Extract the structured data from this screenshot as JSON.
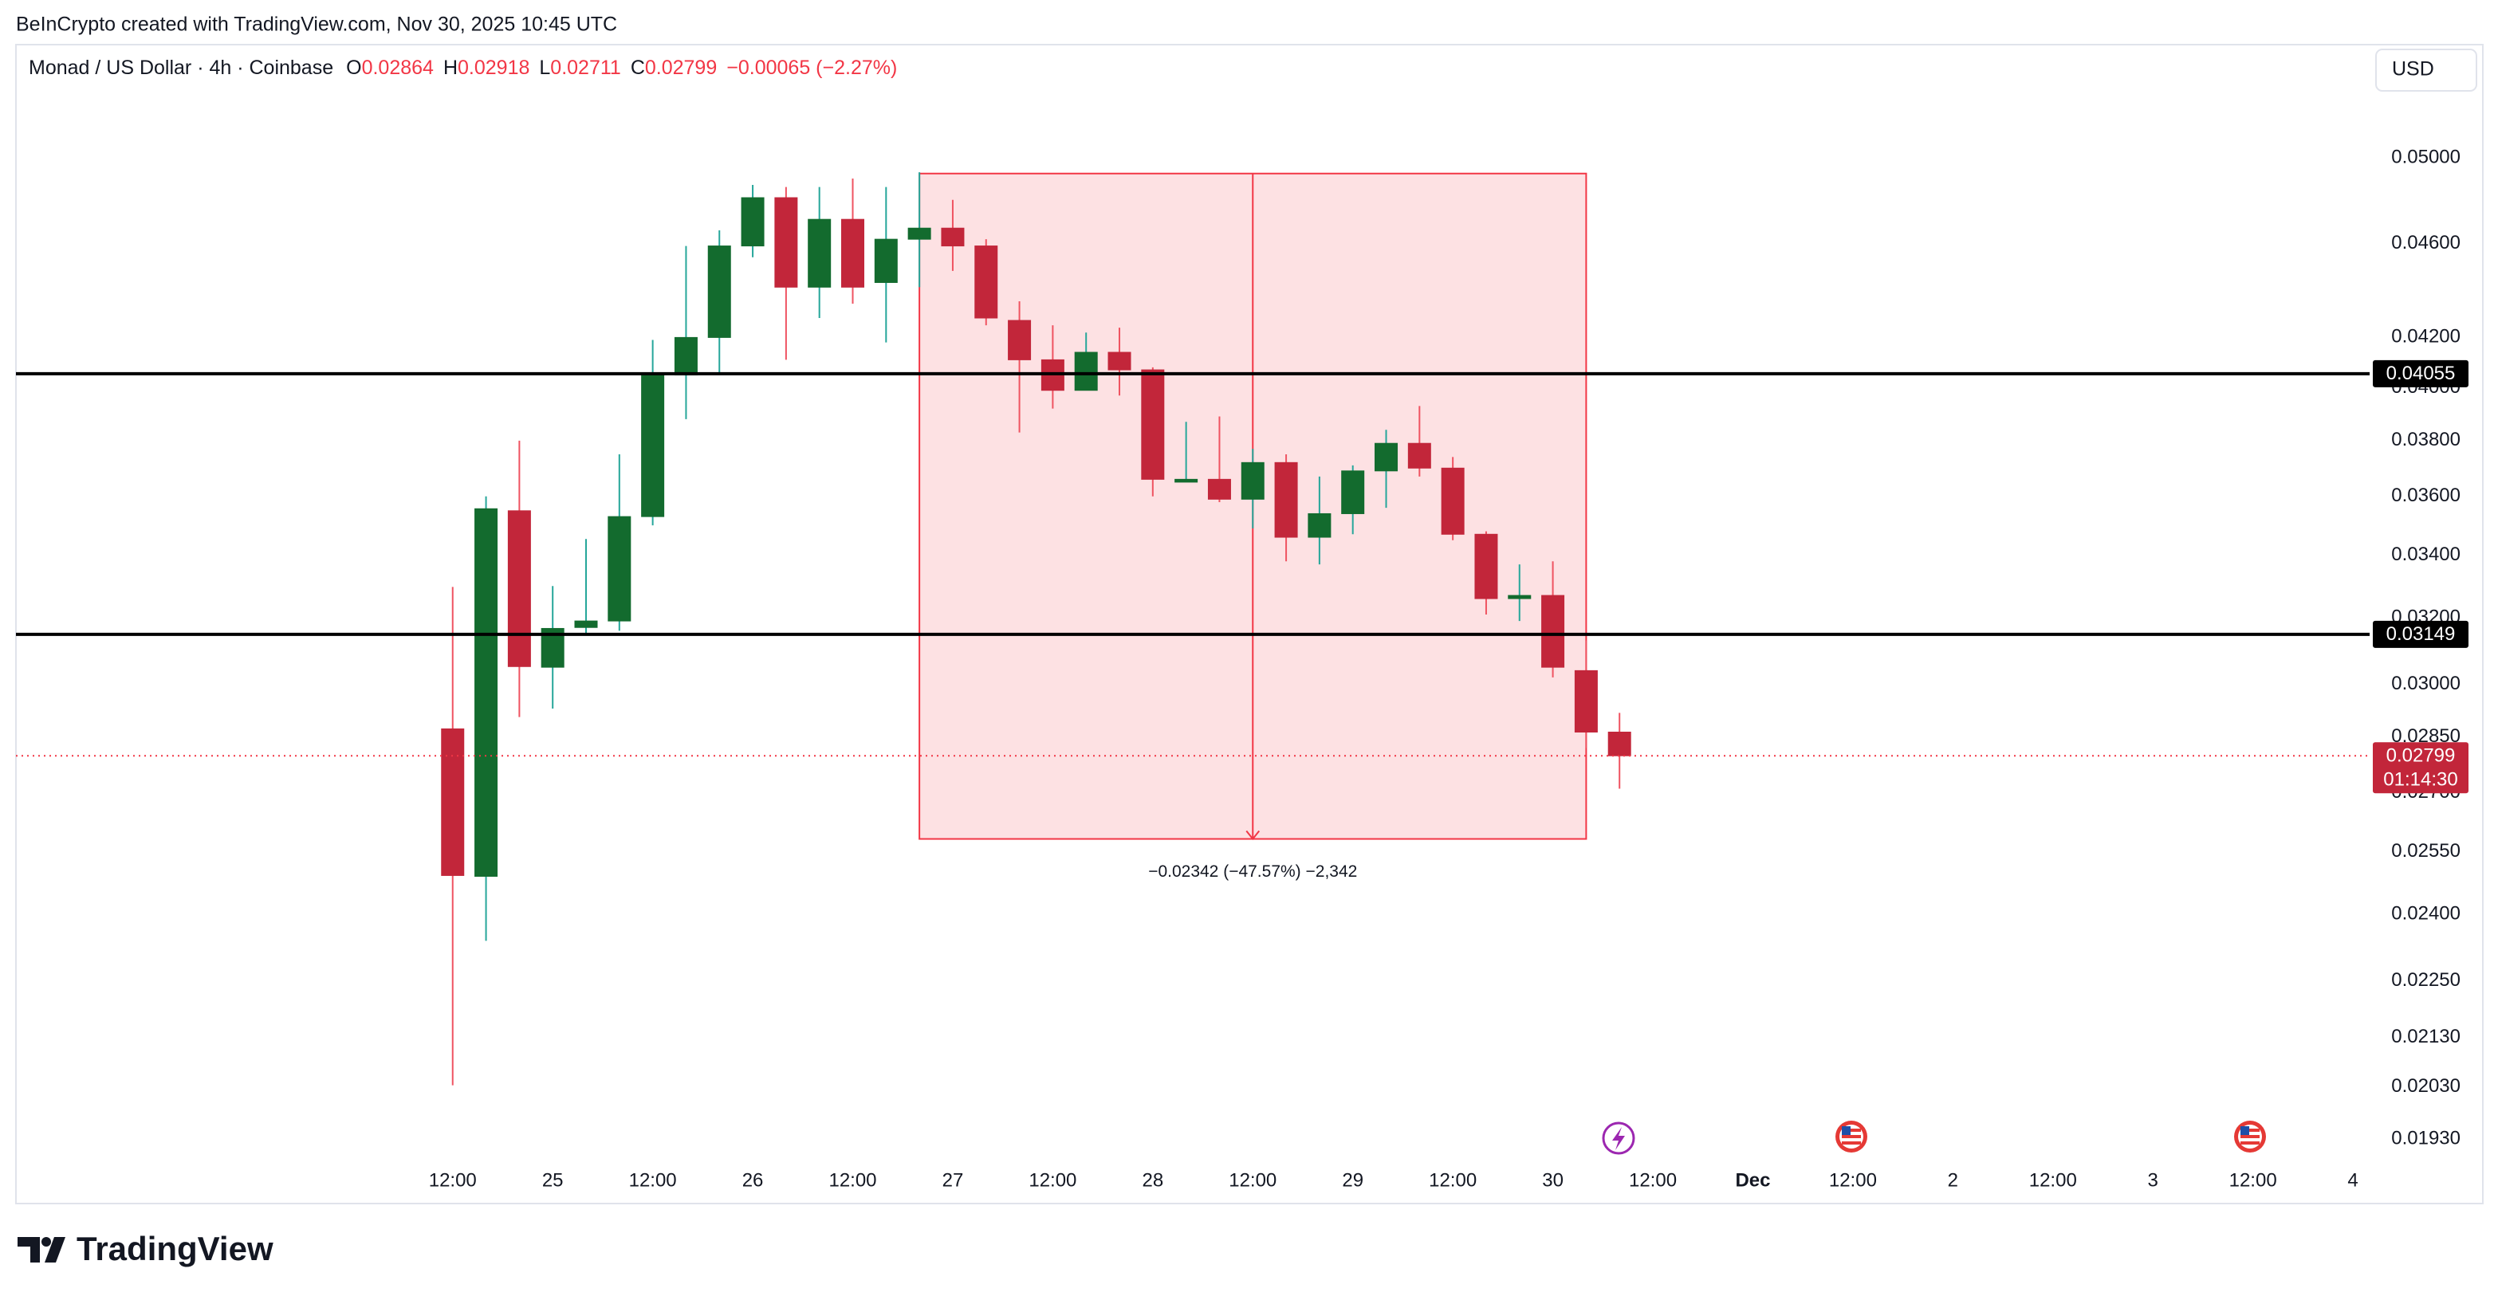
{
  "chart_data": {
    "type": "candlestick",
    "attribution": "BeInCrypto created with TradingView.com, Nov 30, 2025 10:45 UTC",
    "title": "Monad / US Dollar · 4h · Coinbase",
    "ohlc_labels": [
      "O",
      "H",
      "L",
      "C"
    ],
    "change": "−0.00065 (−2.27%)",
    "currency": "USD",
    "brand": "TradingView",
    "up_color": "#136b2e",
    "down_color": "#c2263a",
    "log_scale": true,
    "ylim": [
      0.0189,
      0.0558
    ],
    "yticks": [
      {
        "value": 0.05,
        "label": "0.05000"
      },
      {
        "value": 0.046,
        "label": "0.04600"
      },
      {
        "value": 0.042,
        "label": "0.04200"
      },
      {
        "value": 0.04,
        "label": "0.04000"
      },
      {
        "value": 0.038,
        "label": "0.03800"
      },
      {
        "value": 0.036,
        "label": "0.03600"
      },
      {
        "value": 0.034,
        "label": "0.03400"
      },
      {
        "value": 0.032,
        "label": "0.03200"
      },
      {
        "value": 0.03,
        "label": "0.03000"
      },
      {
        "value": 0.0285,
        "label": "0.02850"
      },
      {
        "value": 0.027,
        "label": "0.02700"
      },
      {
        "value": 0.0255,
        "label": "0.02550"
      },
      {
        "value": 0.024,
        "label": "0.02400"
      },
      {
        "value": 0.0225,
        "label": "0.02250"
      },
      {
        "value": 0.0213,
        "label": "0.02130"
      },
      {
        "value": 0.0203,
        "label": "0.02030"
      },
      {
        "value": 0.0193,
        "label": "0.01930"
      }
    ],
    "xlim": [
      -13.1,
      57.5
    ],
    "xticks": [
      {
        "value": 0,
        "label": "12:00"
      },
      {
        "value": 3,
        "label": "25"
      },
      {
        "value": 6,
        "label": "12:00"
      },
      {
        "value": 9,
        "label": "26"
      },
      {
        "value": 12,
        "label": "12:00"
      },
      {
        "value": 15,
        "label": "27"
      },
      {
        "value": 18,
        "label": "12:00"
      },
      {
        "value": 21,
        "label": "28"
      },
      {
        "value": 24,
        "label": "12:00"
      },
      {
        "value": 27,
        "label": "29"
      },
      {
        "value": 30,
        "label": "12:00"
      },
      {
        "value": 33,
        "label": "30"
      },
      {
        "value": 36,
        "label": "12:00"
      },
      {
        "value": 39,
        "label": "Dec"
      },
      {
        "value": 42,
        "label": "12:00"
      },
      {
        "value": 45,
        "label": "2"
      },
      {
        "value": 48,
        "label": "12:00"
      },
      {
        "value": 51,
        "label": "3"
      },
      {
        "value": 54,
        "label": "12:00"
      },
      {
        "value": 57,
        "label": "4"
      }
    ],
    "candles": [
      {
        "open": 0.02873,
        "high": 0.03297,
        "low": 0.02033,
        "close": 0.02492
      },
      {
        "open": 0.0249,
        "high": 0.036,
        "low": 0.02339,
        "close": 0.03557
      },
      {
        "open": 0.0355,
        "high": 0.038,
        "low": 0.02906,
        "close": 0.03052
      },
      {
        "open": 0.0305,
        "high": 0.033,
        "low": 0.0293,
        "close": 0.03167
      },
      {
        "open": 0.0317,
        "high": 0.03454,
        "low": 0.0315,
        "close": 0.0319
      },
      {
        "open": 0.0319,
        "high": 0.0375,
        "low": 0.0316,
        "close": 0.0353
      },
      {
        "open": 0.0353,
        "high": 0.0419,
        "low": 0.035,
        "close": 0.0405
      },
      {
        "open": 0.0405,
        "high": 0.0459,
        "low": 0.0388,
        "close": 0.042
      },
      {
        "open": 0.042,
        "high": 0.0466,
        "low": 0.0405,
        "close": 0.0459
      },
      {
        "open": 0.0459,
        "high": 0.0487,
        "low": 0.0454,
        "close": 0.0481
      },
      {
        "open": 0.0481,
        "high": 0.0486,
        "low": 0.0411,
        "close": 0.0441
      },
      {
        "open": 0.0441,
        "high": 0.0486,
        "low": 0.0428,
        "close": 0.0471
      },
      {
        "open": 0.0471,
        "high": 0.049,
        "low": 0.0434,
        "close": 0.0441
      },
      {
        "open": 0.0443,
        "high": 0.0486,
        "low": 0.0418,
        "close": 0.0462
      },
      {
        "open": 0.0462,
        "high": 0.0493,
        "low": 0.0441,
        "close": 0.0467
      },
      {
        "open": 0.0467,
        "high": 0.048,
        "low": 0.0448,
        "close": 0.0459
      },
      {
        "open": 0.0459,
        "high": 0.0462,
        "low": 0.0425,
        "close": 0.0428
      },
      {
        "open": 0.0427,
        "high": 0.0435,
        "low": 0.0383,
        "close": 0.0411
      },
      {
        "open": 0.0411,
        "high": 0.0425,
        "low": 0.0392,
        "close": 0.0399
      },
      {
        "open": 0.0399,
        "high": 0.0422,
        "low": 0.0399,
        "close": 0.0414
      },
      {
        "open": 0.0414,
        "high": 0.0424,
        "low": 0.0397,
        "close": 0.0407
      },
      {
        "open": 0.0407,
        "high": 0.0408,
        "low": 0.036,
        "close": 0.0366
      },
      {
        "open": 0.0365,
        "high": 0.0387,
        "low": 0.0365,
        "close": 0.0366
      },
      {
        "open": 0.0366,
        "high": 0.0389,
        "low": 0.0358,
        "close": 0.0359
      },
      {
        "open": 0.0359,
        "high": 0.0377,
        "low": 0.0349,
        "close": 0.0372
      },
      {
        "open": 0.0372,
        "high": 0.0375,
        "low": 0.0338,
        "close": 0.0346
      },
      {
        "open": 0.0346,
        "high": 0.0367,
        "low": 0.0337,
        "close": 0.0354
      },
      {
        "open": 0.0354,
        "high": 0.0371,
        "low": 0.0347,
        "close": 0.0369
      },
      {
        "open": 0.0369,
        "high": 0.0384,
        "low": 0.0356,
        "close": 0.0379
      },
      {
        "open": 0.0379,
        "high": 0.0393,
        "low": 0.0367,
        "close": 0.037
      },
      {
        "open": 0.037,
        "high": 0.0374,
        "low": 0.0345,
        "close": 0.0347
      },
      {
        "open": 0.0347,
        "high": 0.0348,
        "low": 0.0321,
        "close": 0.0326
      },
      {
        "open": 0.0326,
        "high": 0.0337,
        "low": 0.0319,
        "close": 0.0327
      },
      {
        "open": 0.0327,
        "high": 0.0338,
        "low": 0.0302,
        "close": 0.0305
      },
      {
        "open": 0.0304,
        "high": 0.0313,
        "low": 0.0282,
        "close": 0.02864
      },
      {
        "open": 0.02864,
        "high": 0.02918,
        "low": 0.02711,
        "close": 0.02799
      }
    ],
    "levels": [
      0.04055,
      0.03149
    ],
    "countdown": "01:14:30",
    "measure": {
      "start": 14,
      "end": 34,
      "from": 0.04924,
      "to": 0.02582,
      "label": "−0.02342 (−47.57%) −2,342"
    }
  }
}
